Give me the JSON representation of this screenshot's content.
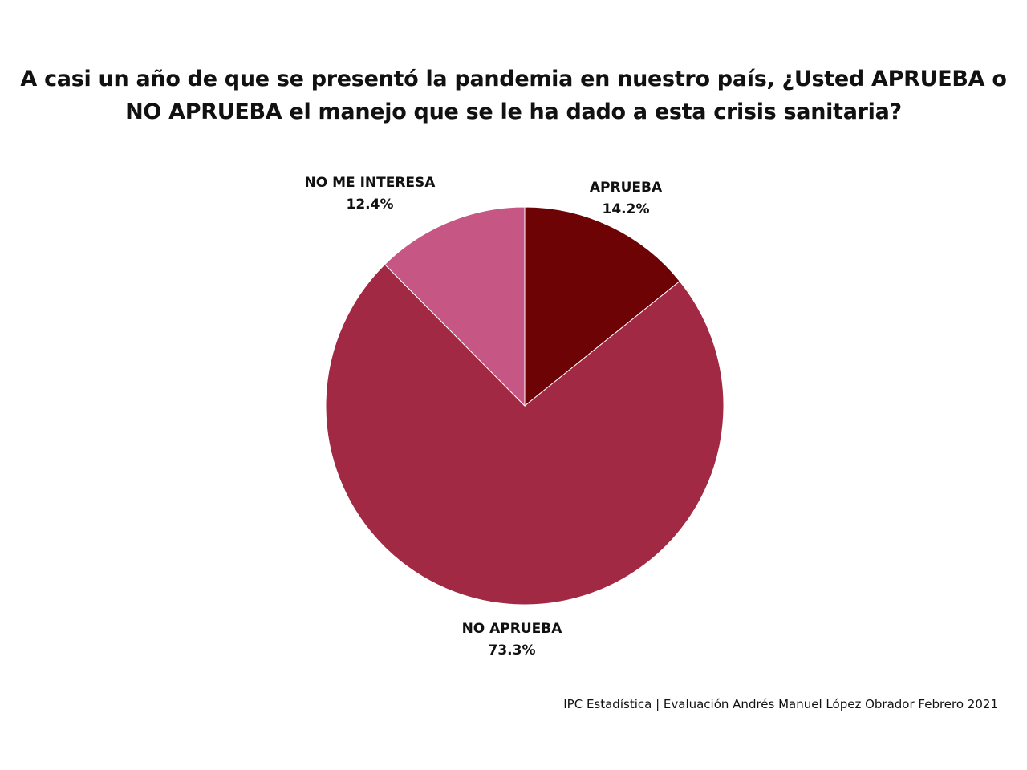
{
  "title": {
    "line1": "A casi un año de que se presentó la pandemia en nuestro país, ¿Usted APRUEBA o",
    "line2": "NO APRUEBA el manejo que se le ha dado a esta crisis sanitaria?"
  },
  "source": "IPC Estadística | Evaluación Andrés Manuel López Obrador Febrero 2021",
  "chart_data": {
    "type": "pie",
    "start": "12 o'clock",
    "direction": "clockwise",
    "slices": [
      {
        "label": "APRUEBA",
        "value": 14.2,
        "value_label": "14.2%",
        "color": "#6e0306"
      },
      {
        "label": "NO APRUEBA",
        "value": 73.3,
        "value_label": "73.3%",
        "color": "#a12943"
      },
      {
        "label": "NO ME INTERESA",
        "value": 12.4,
        "value_label": "12.4%",
        "color": "#c65683"
      }
    ]
  }
}
